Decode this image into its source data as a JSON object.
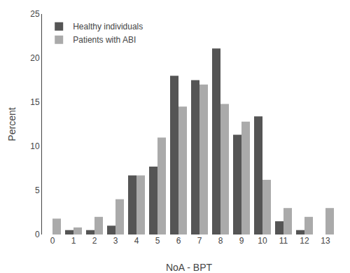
{
  "chart_data": {
    "type": "bar",
    "xlabel": "NoA - BPT",
    "ylabel": "Percent",
    "categories": [
      "0",
      "1",
      "2",
      "3",
      "4",
      "5",
      "6",
      "7",
      "8",
      "9",
      "10",
      "11",
      "12",
      "13"
    ],
    "series": [
      {
        "name": "Healthy individuals",
        "color": "#555555",
        "values": [
          0,
          0.5,
          0.5,
          1.0,
          6.7,
          7.7,
          18.0,
          17.5,
          21.1,
          11.3,
          13.4,
          1.5,
          0.5,
          0
        ]
      },
      {
        "name": "Patients with ABI",
        "color": "#aaaaaa",
        "values": [
          1.8,
          0.8,
          2.0,
          4.0,
          6.7,
          11.0,
          14.5,
          17.0,
          14.8,
          12.8,
          6.2,
          3.0,
          2.0,
          3.0
        ]
      }
    ],
    "ylim": [
      0,
      25
    ],
    "yticks": [
      0,
      5,
      10,
      15,
      20,
      25
    ],
    "grid": false,
    "legend": "upper left"
  }
}
